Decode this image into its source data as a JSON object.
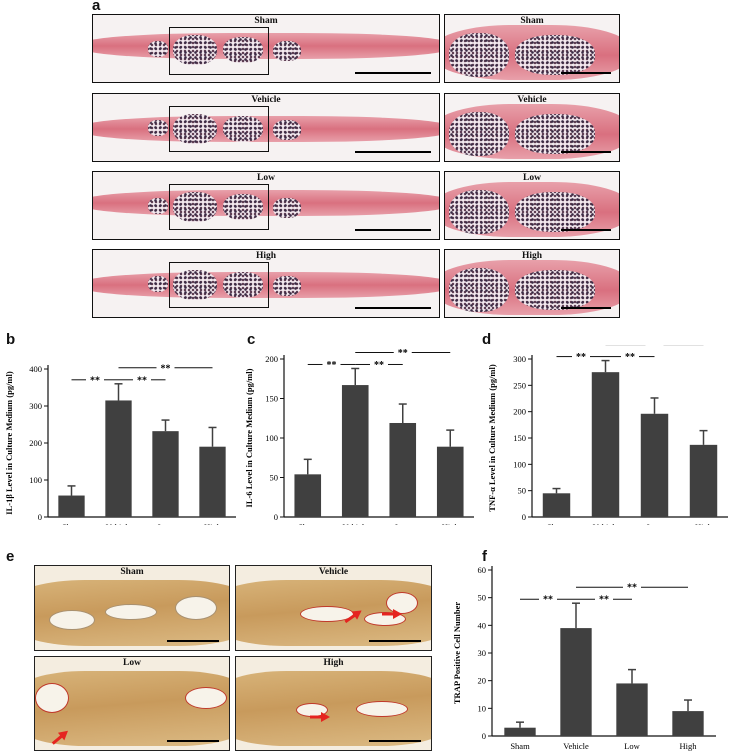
{
  "panel_labels": {
    "a": "a",
    "b": "b",
    "c": "c",
    "d": "d",
    "e": "e",
    "f": "f"
  },
  "he_panels": {
    "rows": [
      {
        "title": "Sham",
        "zoom_title": "Sham"
      },
      {
        "title": "Vehicle",
        "zoom_title": "Vehicle"
      },
      {
        "title": "Low",
        "zoom_title": "Low"
      },
      {
        "title": "High",
        "zoom_title": "High"
      }
    ]
  },
  "trap_panels": {
    "titles": [
      "Sham",
      "Vehicle",
      "Low",
      "High"
    ]
  },
  "colors": {
    "bar": "#404040",
    "he_bone": "#d9707f",
    "he_bone_light": "#e8a0aa",
    "trap_stain": "#c0392b",
    "arrow": "#e52420"
  },
  "chart_data": [
    {
      "id": "b",
      "type": "bar",
      "categories": [
        "Sham",
        "Vehicle",
        "Low",
        "High"
      ],
      "values": [
        58,
        315,
        232,
        190
      ],
      "errors": [
        26,
        45,
        30,
        52
      ],
      "ylabel": "IL-1β Level in Culture Medium (pg/ml)",
      "ylim": [
        0,
        400
      ],
      "yticks": [
        "0",
        "100",
        "200",
        "300",
        "400"
      ],
      "significance": [
        {
          "from": 0,
          "to": 1,
          "label": "**",
          "level": "low"
        },
        {
          "from": 1,
          "to": 2,
          "label": "**",
          "level": "low"
        },
        {
          "from": 1,
          "to": 3,
          "label": "**",
          "level": "high"
        }
      ]
    },
    {
      "id": "c",
      "type": "bar",
      "categories": [
        "Sham",
        "Vehicle",
        "Low",
        "High"
      ],
      "values": [
        54,
        167,
        119,
        89
      ],
      "errors": [
        19,
        21,
        24,
        21
      ],
      "ylabel": "IL-6 Level in Culture Medium (pg/ml)",
      "ylim": [
        0,
        200
      ],
      "yticks": [
        "0",
        "50",
        "100",
        "150",
        "200"
      ],
      "significance": [
        {
          "from": 0,
          "to": 1,
          "label": "**",
          "level": "low"
        },
        {
          "from": 1,
          "to": 2,
          "label": "**",
          "level": "low"
        },
        {
          "from": 1,
          "to": 3,
          "label": "**",
          "level": "high"
        }
      ]
    },
    {
      "id": "d",
      "type": "bar",
      "categories": [
        "Sham",
        "Vehicle",
        "Low",
        "High"
      ],
      "values": [
        45,
        275,
        196,
        137
      ],
      "errors": [
        9,
        22,
        30,
        27
      ],
      "ylabel": "TNF-α Level in Culture Medium (pg/ml)",
      "ylim": [
        0,
        300
      ],
      "yticks": [
        "0",
        "50",
        "100",
        "150",
        "200",
        "250",
        "300"
      ],
      "significance": [
        {
          "from": 0,
          "to": 1,
          "label": "**",
          "level": "low"
        },
        {
          "from": 1,
          "to": 2,
          "label": "**",
          "level": "low"
        },
        {
          "from": 1,
          "to": 3,
          "label": "**",
          "level": "high"
        }
      ]
    },
    {
      "id": "f",
      "type": "bar",
      "categories": [
        "Sham",
        "Vehicle",
        "Low",
        "High"
      ],
      "values": [
        3,
        39,
        19,
        9
      ],
      "errors": [
        2,
        9,
        5,
        4
      ],
      "ylabel": "TRAP Positive Cell Number",
      "ylim": [
        0,
        60
      ],
      "yticks": [
        "0",
        "10",
        "20",
        "30",
        "40",
        "50",
        "60"
      ],
      "significance": [
        {
          "from": 0,
          "to": 1,
          "label": "**",
          "level": "low"
        },
        {
          "from": 1,
          "to": 2,
          "label": "**",
          "level": "low"
        },
        {
          "from": 1,
          "to": 3,
          "label": "**",
          "level": "high"
        }
      ]
    }
  ]
}
